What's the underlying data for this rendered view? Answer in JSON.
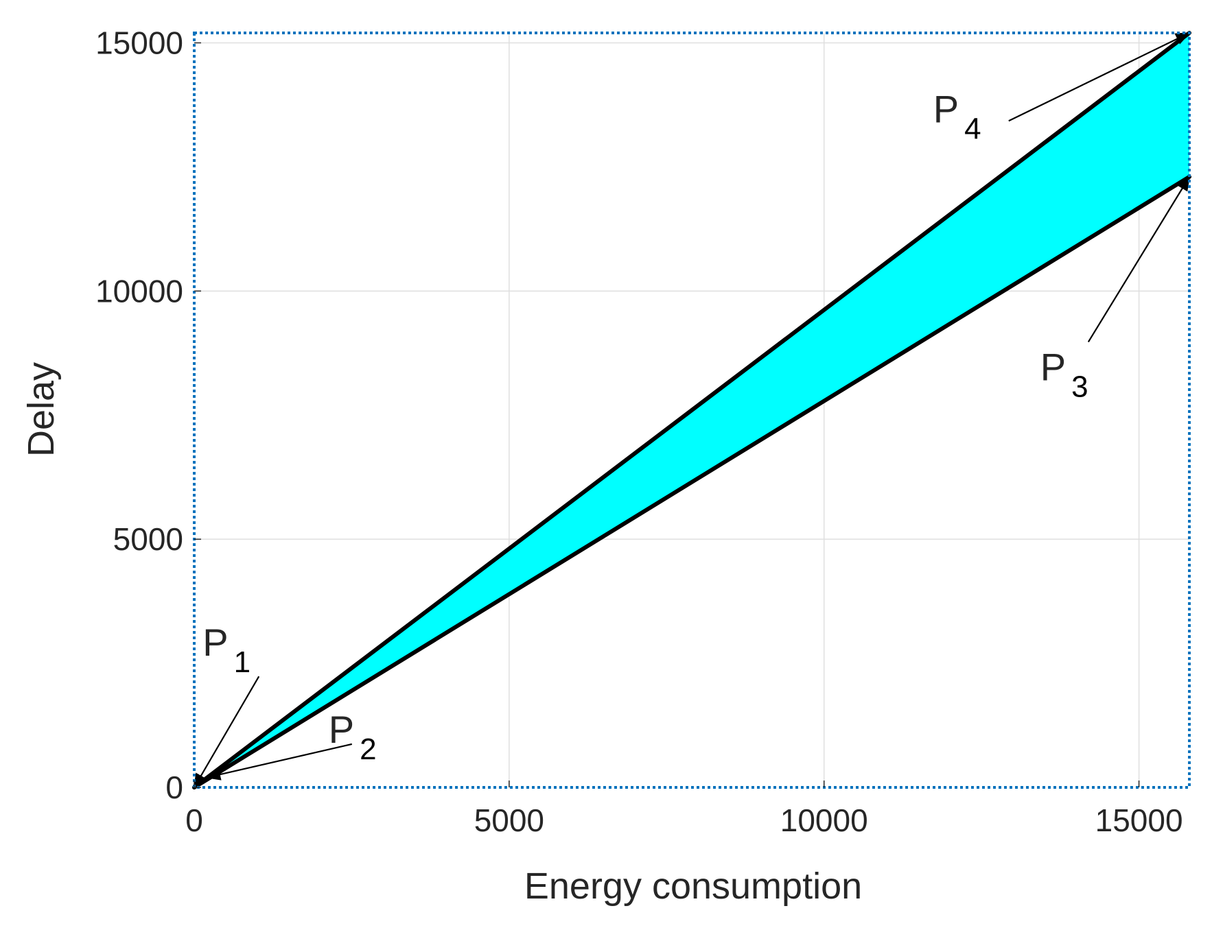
{
  "chart_data": {
    "type": "area",
    "title": "",
    "xlabel": "Energy consumption",
    "ylabel": "Delay",
    "xlim": [
      0,
      15800
    ],
    "ylim": [
      0,
      15200
    ],
    "xticks": [
      0,
      5000,
      10000,
      15000
    ],
    "yticks": [
      0,
      5000,
      10000,
      15000
    ],
    "xtick_labels": [
      "0",
      "5000",
      "10000",
      "15000"
    ],
    "ytick_labels": [
      "0",
      "5000",
      "10000",
      "15000"
    ],
    "grid": true,
    "fill_color": "#00ffff",
    "line_color": "#000000",
    "border_color": "#0072bd",
    "region": [
      {
        "x": 0,
        "y": 0
      },
      {
        "x": 15800,
        "y": 15200
      },
      {
        "x": 15800,
        "y": 12300
      },
      {
        "x": 0,
        "y": 0
      }
    ],
    "series": [
      {
        "name": "upper boundary",
        "x": [
          0,
          15800
        ],
        "y": [
          0,
          15200
        ]
      },
      {
        "name": "lower boundary",
        "x": [
          0,
          15800
        ],
        "y": [
          0,
          12300
        ]
      }
    ],
    "annotations": [
      {
        "label": "P",
        "sub": "1",
        "x": 0,
        "y": 0,
        "text_x": 700,
        "text_y": 2650
      },
      {
        "label": "P",
        "sub": "2",
        "x": 200,
        "y": 200,
        "text_x": 2700,
        "text_y": 900
      },
      {
        "label": "P",
        "sub": "3",
        "x": 15800,
        "y": 12300,
        "text_x": 14000,
        "text_y": 8200
      },
      {
        "label": "P",
        "sub": "4",
        "x": 15800,
        "y": 15200,
        "text_x": 12300,
        "text_y": 13400
      }
    ]
  }
}
